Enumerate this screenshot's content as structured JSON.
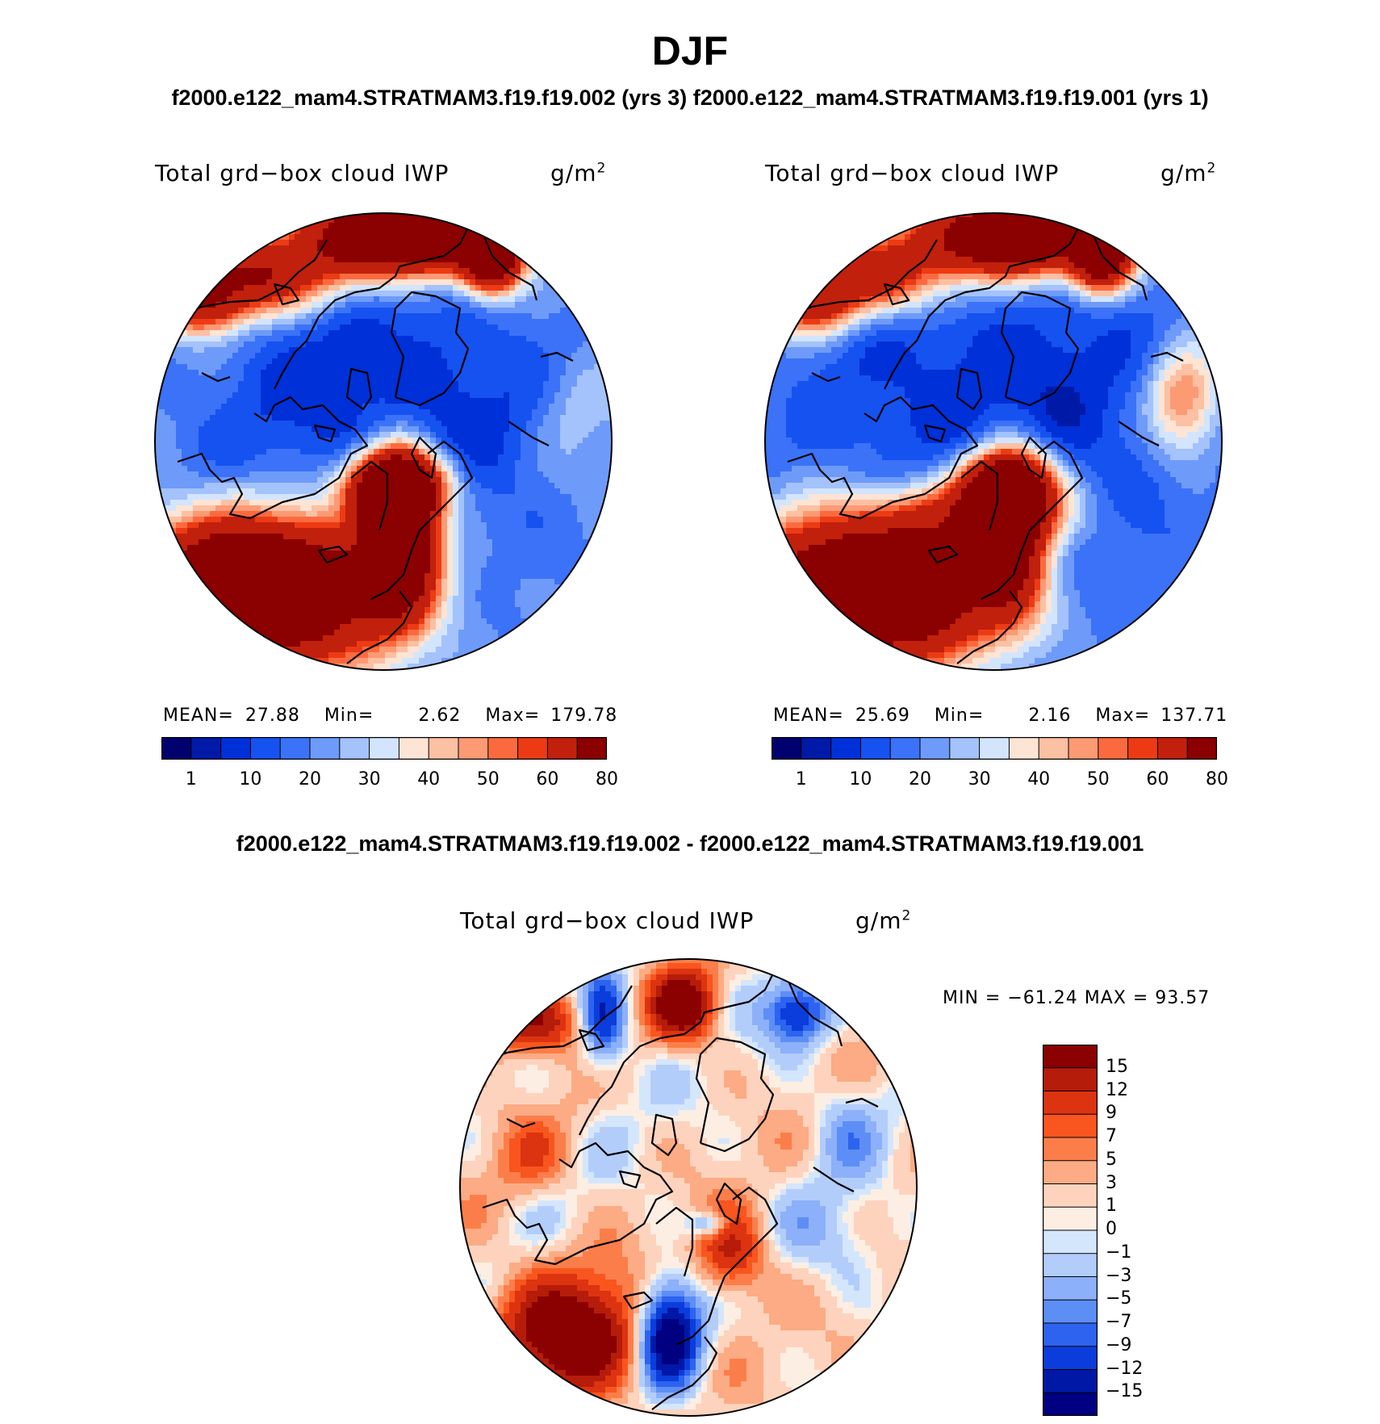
{
  "figure": {
    "title": "DJF",
    "case_header": "f2000.e122_mam4.STRATMAM3.f19.f19.002 (yrs 3)  f2000.e122_mam4.STRATMAM3.f19.f19.001 (yrs 1)",
    "diff_header": "f2000.e122_mam4.STRATMAM3.f19.f19.002 - f2000.e122_mam4.STRATMAM3.f19.f19.001"
  },
  "panels": [
    {
      "title": "Total grd−box cloud IWP",
      "units_base": "g/m",
      "units_exp": "2",
      "mean_label": "MEAN=",
      "mean": "27.88",
      "min_label": "Min=",
      "min": "2.62",
      "max_label": "Max=",
      "max": "179.78",
      "colorbar_ticks": [
        "1",
        "10",
        "20",
        "30",
        "40",
        "50",
        "60",
        "80"
      ]
    },
    {
      "title": "Total grd−box cloud IWP",
      "units_base": "g/m",
      "units_exp": "2",
      "mean_label": "MEAN=",
      "mean": "25.69",
      "min_label": "Min=",
      "min": "2.16",
      "max_label": "Max=",
      "max": "137.71",
      "colorbar_ticks": [
        "1",
        "10",
        "20",
        "30",
        "40",
        "50",
        "60",
        "80"
      ]
    },
    {
      "title": "Total grd−box cloud IWP",
      "units_base": "g/m",
      "units_exp": "2",
      "minmax_text": "MIN = −61.24 MAX =   93.57",
      "colorbar_ticks": [
        "15",
        "12",
        "9",
        "7",
        "5",
        "3",
        "1",
        "0",
        "−1",
        "−3",
        "−5",
        "−7",
        "−9",
        "−12",
        "−15"
      ]
    }
  ],
  "colors": {
    "abs_palette": [
      "#00006e",
      "#001aa8",
      "#0030d8",
      "#1652f0",
      "#3b72f7",
      "#6e9bf9",
      "#a4c2fb",
      "#d3e5fc",
      "#fde4d4",
      "#fcc0a3",
      "#fc9a74",
      "#fb6a3e",
      "#ec3b14",
      "#c1200c",
      "#8b0000"
    ],
    "diff_palette": [
      "#8b0000",
      "#b51c0a",
      "#dc3410",
      "#f9551e",
      "#fb7e4a",
      "#fcab84",
      "#fdd3bd",
      "#fdeee3",
      "#d4e6fc",
      "#b3cdfb",
      "#8cb0f9",
      "#5d8ef6",
      "#2d63ef",
      "#0a3ddb",
      "#0018a6",
      "#000080"
    ],
    "coast": "#000000"
  }
}
